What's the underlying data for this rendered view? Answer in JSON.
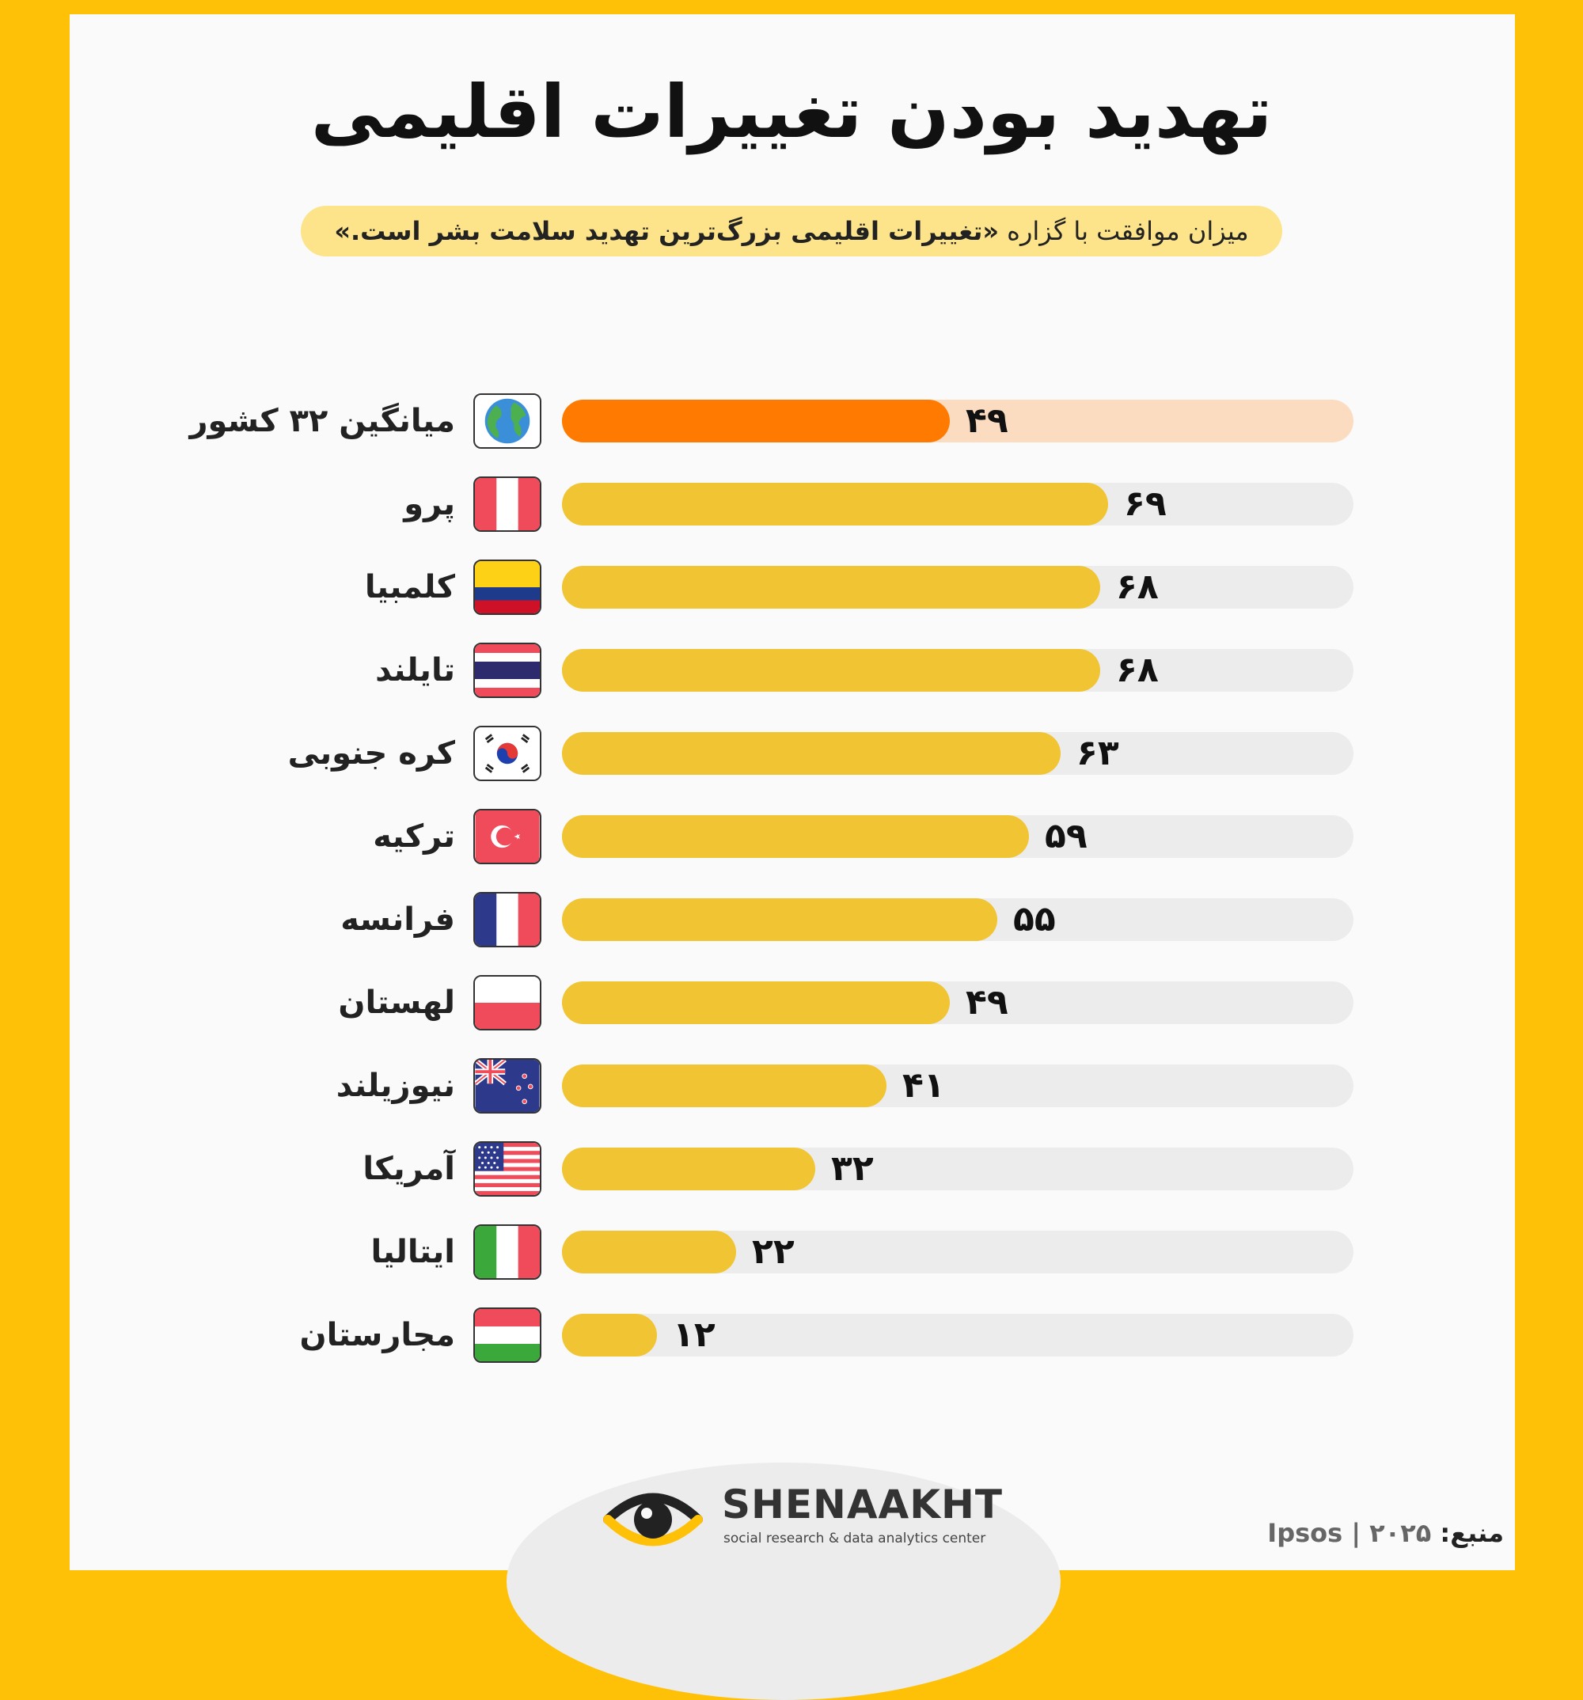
{
  "title": "تهدید بودن تغییرات اقلیمی",
  "subtitle": {
    "prefix": "میزان موافقت با گزاره ",
    "quote": "«تغییرات اقلیمی بزرگ‌ترین تهدید سلامت بشر است.»"
  },
  "colors": {
    "frame": "#ffc107",
    "bar": "#f0c432",
    "bar_average": "#ff7a00",
    "track": "#ececec",
    "track_average": "#fbdcc0",
    "subtitle_bg": "#fde48a"
  },
  "chart_data": {
    "type": "bar",
    "orientation": "horizontal",
    "xlim": [
      0,
      100
    ],
    "categories": [
      "میانگین ۳۲ کشور",
      "پرو",
      "کلمبیا",
      "تایلند",
      "کره جنوبی",
      "ترکیه",
      "فرانسه",
      "لهستان",
      "نیوزیلند",
      "آمریکا",
      "ایتالیا",
      "مجارستان"
    ],
    "values": [
      49,
      69,
      68,
      68,
      63,
      59,
      55,
      49,
      41,
      32,
      22,
      12
    ],
    "value_labels": [
      "۴۹",
      "۶۹",
      "۶۸",
      "۶۸",
      "۶۳",
      "۵۹",
      "۵۵",
      "۴۹",
      "۴۱",
      "۳۲",
      "۲۲",
      "۱۲"
    ],
    "flags": [
      "globe-icon",
      "peru-flag-icon",
      "colombia-flag-icon",
      "thailand-flag-icon",
      "south-korea-flag-icon",
      "turkey-flag-icon",
      "france-flag-icon",
      "poland-flag-icon",
      "new-zealand-flag-icon",
      "usa-flag-icon",
      "italy-flag-icon",
      "hungary-flag-icon"
    ],
    "highlight_index": 0
  },
  "logo": {
    "name": "SHENAAKHT",
    "tagline": "social research & data analytics center"
  },
  "source": {
    "label": "منبع:",
    "text": "Ipsos | ۲۰۲۵"
  }
}
